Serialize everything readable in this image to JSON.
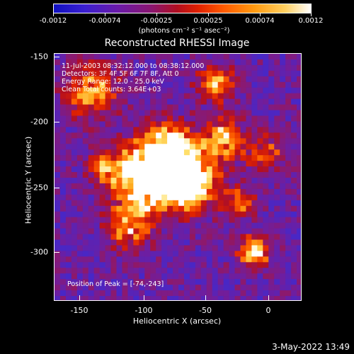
{
  "colorbar": {
    "labels": [
      "-0.0012",
      "-0.00074",
      "-0.00025",
      "0.00025",
      "0.00074",
      "0.0012"
    ],
    "units": "(photons cm⁻² s⁻¹ asec⁻²)"
  },
  "title": "Reconstructed RHESSI Image",
  "info": {
    "time": "11-Jul-2003 08:32:12.000 to 08:38:12.000",
    "detectors": "Detectors: 3F 4F 5F 6F 7F 8F, Att 0",
    "energy": "Energy Range: 12.0 - 25.0 keV",
    "clean": "Clean     Total counts: 3.64E+03",
    "peak": "Position of Peak = [-74,-243]"
  },
  "axes": {
    "xlabel": "Heliocentric X (arcsec)",
    "ylabel": "Heliocentric Y (arcsec)",
    "xticks": [
      "-150",
      "-100",
      "-50",
      "0"
    ],
    "yticks": [
      "-150",
      "-200",
      "-250",
      "-300"
    ]
  },
  "timestamp": "3-May-2022 13:49",
  "colors": {
    "background": "#000000",
    "low": "#1010c0",
    "mid": "#7a1a90",
    "high": "#ff5a00",
    "peak": "#ffffff"
  }
}
